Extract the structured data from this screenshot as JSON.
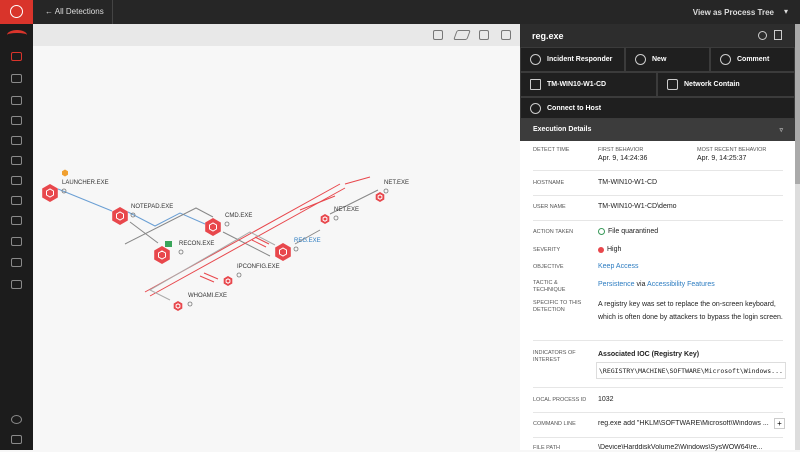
{
  "topbar": {
    "back": "All Detections",
    "view": "View as Process Tree"
  },
  "graph": {
    "nodes": [
      "LAUNCHER.EXE",
      "NOTEPAD.EXE",
      "CMD.EXE",
      "RECON.EXE",
      "IPCONFIG.EXE",
      "WHOAMI.EXE",
      "REG.EXE",
      "NET.EXE",
      "NET.EXE"
    ]
  },
  "panel": {
    "title": "reg.exe",
    "actions": [
      "Incident Responder",
      "New",
      "Comment",
      "TM-WIN10-W1-CD",
      "Network Contain",
      "Connect to Host"
    ],
    "section": "Execution Details",
    "detect_time": {
      "label": "DETECT TIME",
      "first_label": "FIRST BEHAVIOR",
      "first": "Apr. 9, 14:24:36",
      "recent_label": "MOST RECENT BEHAVIOR",
      "recent": "Apr. 9, 14:25:37"
    },
    "rows": [
      {
        "label": "HOSTNAME",
        "value": "TM-WIN10-W1-CD"
      },
      {
        "label": "USER NAME",
        "value": "TM-WIN10-W1-CD\\demo"
      },
      {
        "label": "ACTION TAKEN",
        "value": "File quarantined"
      },
      {
        "label": "SEVERITY",
        "value": "High"
      },
      {
        "label": "OBJECTIVE",
        "value": "Keep Access"
      }
    ],
    "tactic": {
      "label": "TACTIC & TECHNIQUE",
      "tactic": "Persistence",
      "joiner": "via",
      "technique": "Accessibility Features"
    },
    "specific": {
      "label": "SPECIFIC TO THIS DETECTION",
      "value": "A registry key was set to replace the on-screen keyboard, which is often done by attackers to bypass the login screen."
    },
    "ioc": {
      "label": "INDICATORS OF INTEREST",
      "title": "Associated IOC (Registry Key)",
      "value": "\\REGISTRY\\MACHINE\\SOFTWARE\\Microsoft\\Windows..."
    },
    "process_id": {
      "label": "LOCAL PROCESS ID",
      "value": "1032"
    },
    "command_line": {
      "label": "COMMAND LINE",
      "value": "reg.exe add \"HKLM\\SOFTWARE\\Microsoft\\Windows ..."
    },
    "file_path": {
      "label": "FILE PATH",
      "value": "\\Device\\HarddiskVolume2\\Windows\\SysWOW64\\re..."
    }
  }
}
